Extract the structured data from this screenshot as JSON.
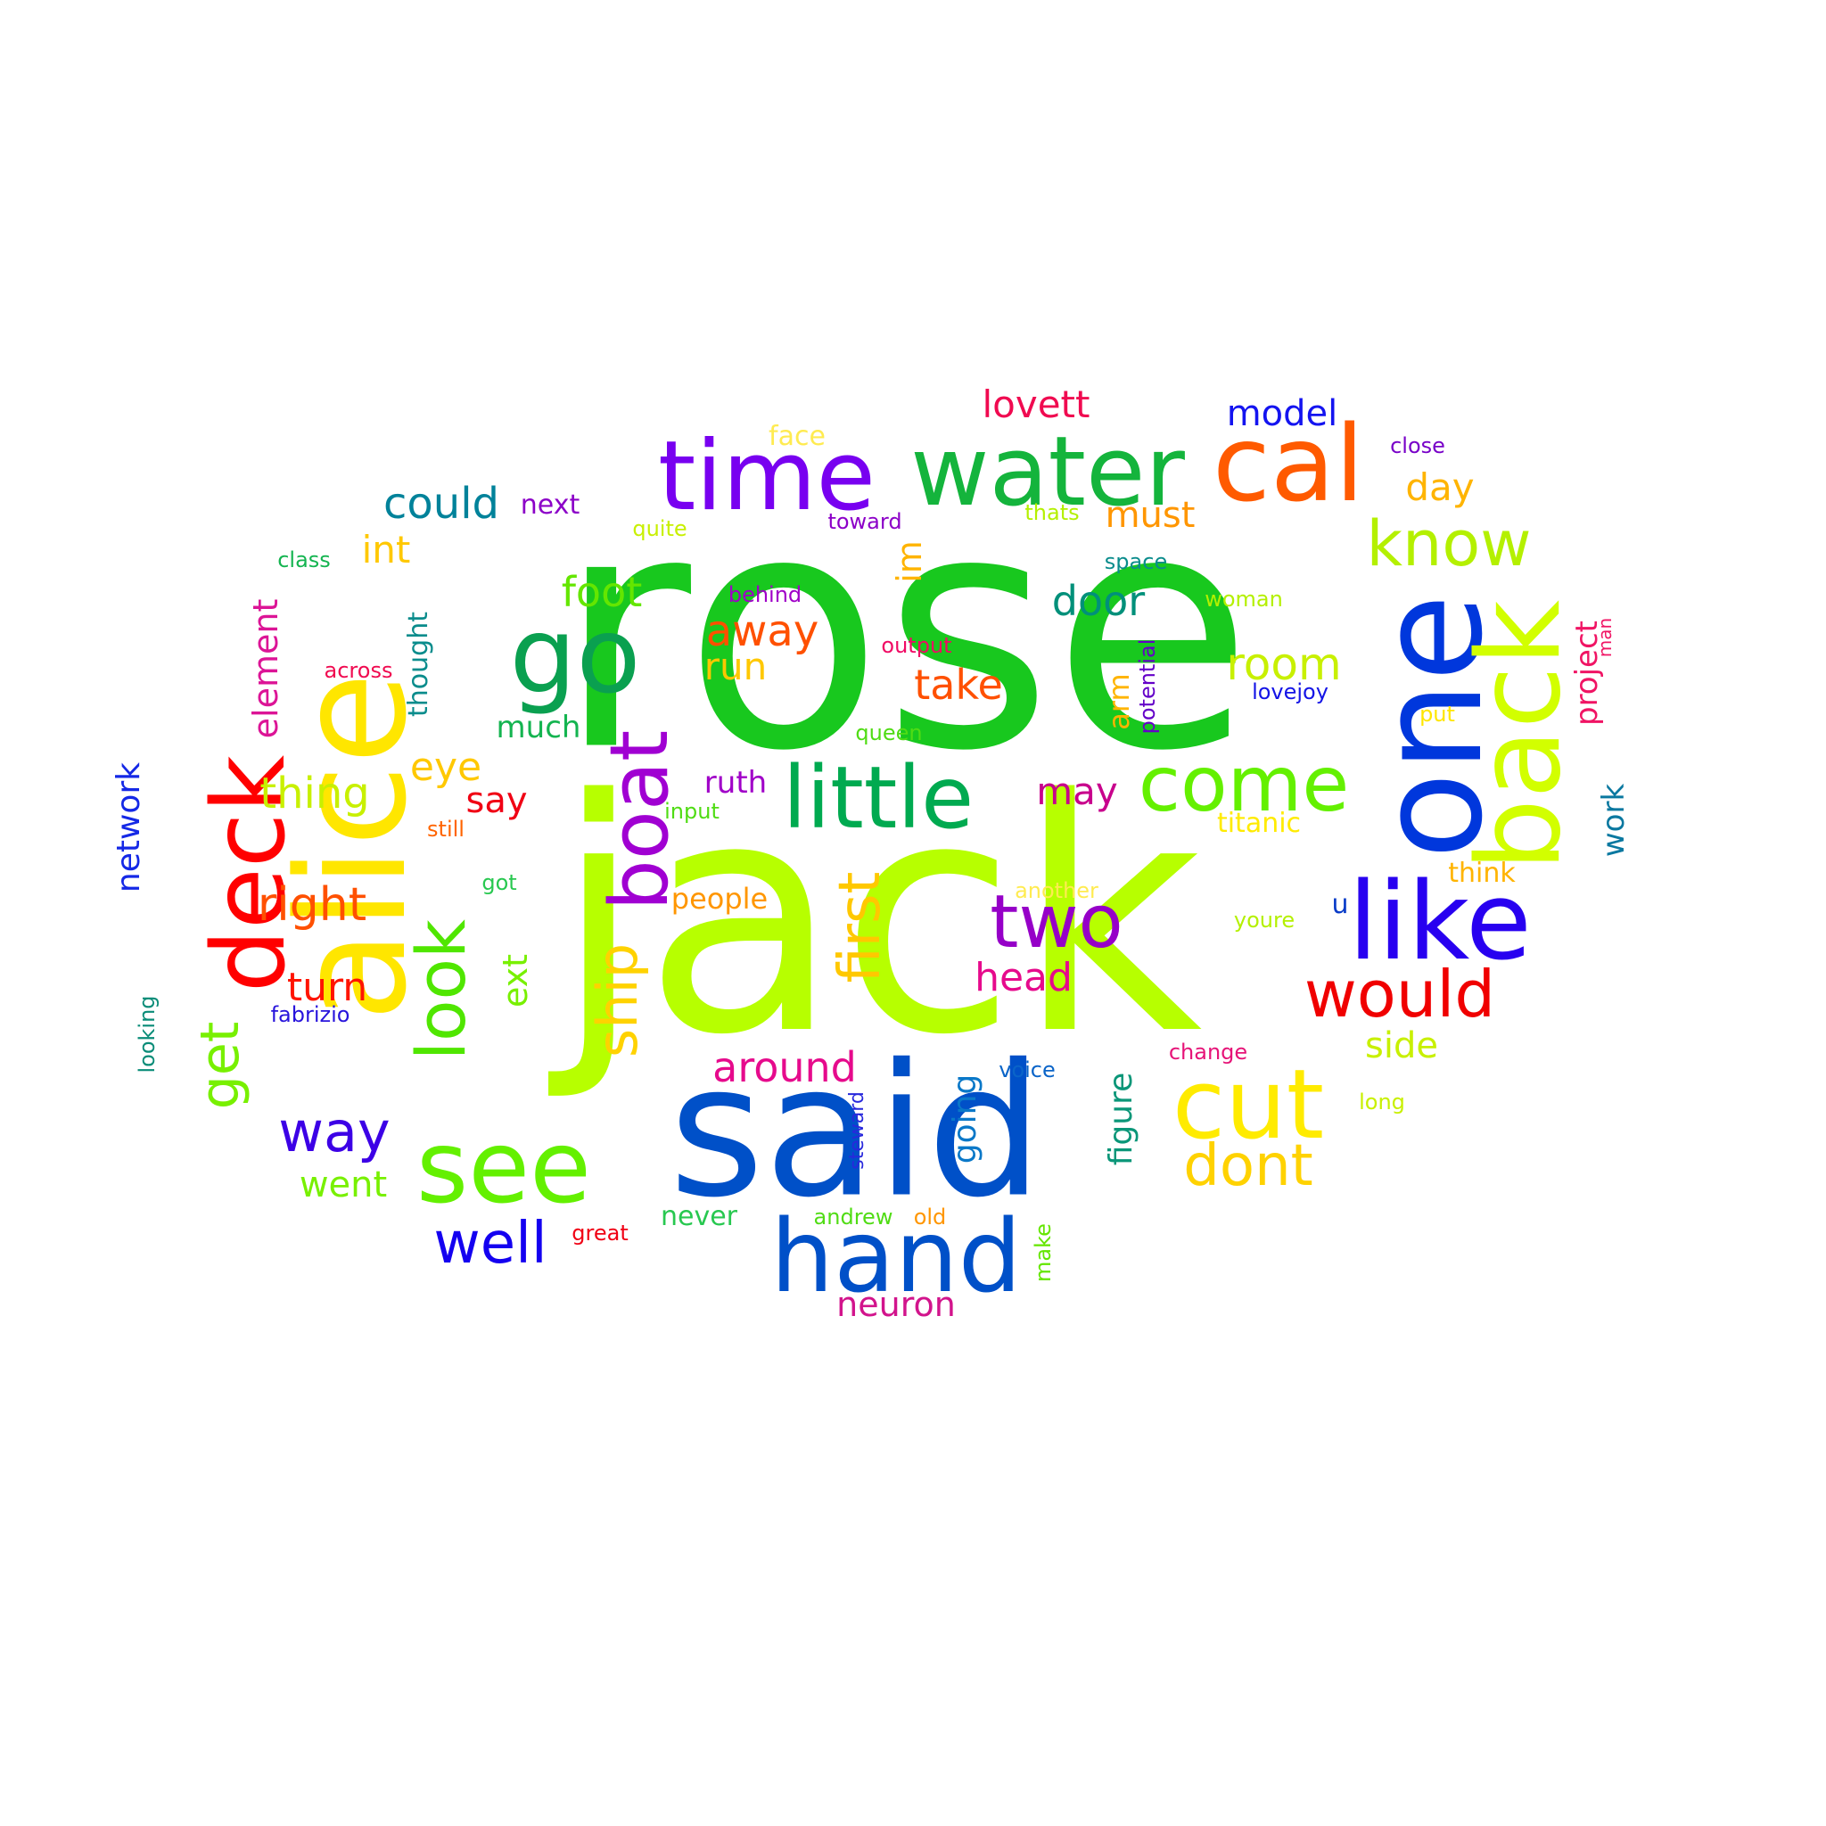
{
  "words": [
    {
      "text": "rose",
      "color": "#18c81e",
      "orientation": "horizontal"
    },
    {
      "text": "jack",
      "color": "#b7ff00",
      "orientation": "horizontal"
    },
    {
      "text": "said",
      "color": "#0050c8",
      "orientation": "horizontal"
    },
    {
      "text": "alice",
      "color": "#ffe600",
      "orientation": "vertical"
    },
    {
      "text": "one",
      "color": "#0037dc",
      "orientation": "vertical"
    },
    {
      "text": "back",
      "color": "#d2ff00",
      "orientation": "vertical"
    },
    {
      "text": "time",
      "color": "#7800f0",
      "orientation": "horizontal"
    },
    {
      "text": "water",
      "color": "#14b43c",
      "orientation": "horizontal"
    },
    {
      "text": "cal",
      "color": "#ff5a00",
      "orientation": "horizontal"
    },
    {
      "text": "go",
      "color": "#0aa050",
      "orientation": "horizontal"
    },
    {
      "text": "deck",
      "color": "#ff0000",
      "orientation": "vertical"
    },
    {
      "text": "like",
      "color": "#2800f0",
      "orientation": "horizontal"
    },
    {
      "text": "hand",
      "color": "#0050c8",
      "orientation": "horizontal"
    },
    {
      "text": "see",
      "color": "#64f000",
      "orientation": "horizontal"
    },
    {
      "text": "cut",
      "color": "#ffeb00",
      "orientation": "horizontal"
    },
    {
      "text": "boat",
      "color": "#a000d2",
      "orientation": "vertical"
    },
    {
      "text": "little",
      "color": "#00aa50",
      "orientation": "horizontal"
    },
    {
      "text": "come",
      "color": "#64f000",
      "orientation": "horizontal"
    },
    {
      "text": "know",
      "color": "#b4f000",
      "orientation": "horizontal"
    },
    {
      "text": "two",
      "color": "#9600c8",
      "orientation": "horizontal"
    },
    {
      "text": "look",
      "color": "#50e600",
      "orientation": "vertical"
    },
    {
      "text": "ship",
      "color": "#ffd200",
      "orientation": "vertical"
    },
    {
      "text": "would",
      "color": "#f00000",
      "orientation": "horizontal"
    },
    {
      "text": "first",
      "color": "#ffc800",
      "orientation": "vertical"
    },
    {
      "text": "well",
      "color": "#1400f0",
      "orientation": "horizontal"
    },
    {
      "text": "way",
      "color": "#3c00e6",
      "orientation": "horizontal"
    },
    {
      "text": "dont",
      "color": "#ffd200",
      "orientation": "horizontal"
    },
    {
      "text": "get",
      "color": "#78f000",
      "orientation": "vertical"
    },
    {
      "text": "right",
      "color": "#ff5000",
      "orientation": "horizontal"
    },
    {
      "text": "room",
      "color": "#c8f000",
      "orientation": "horizontal"
    },
    {
      "text": "door",
      "color": "#00907a",
      "orientation": "horizontal"
    },
    {
      "text": "away",
      "color": "#ff5000",
      "orientation": "horizontal"
    },
    {
      "text": "take",
      "color": "#ff5000",
      "orientation": "horizontal"
    },
    {
      "text": "could",
      "color": "#00829a",
      "orientation": "horizontal"
    },
    {
      "text": "foot",
      "color": "#64e600",
      "orientation": "horizontal"
    },
    {
      "text": "head",
      "color": "#e60a8c",
      "orientation": "horizontal"
    },
    {
      "text": "around",
      "color": "#e60a8c",
      "orientation": "horizontal"
    },
    {
      "text": "thing",
      "color": "#c8f000",
      "orientation": "horizontal"
    },
    {
      "text": "eye",
      "color": "#ffc800",
      "orientation": "horizontal"
    },
    {
      "text": "turn",
      "color": "#ff1400",
      "orientation": "horizontal"
    },
    {
      "text": "run",
      "color": "#ffc800",
      "orientation": "horizontal"
    },
    {
      "text": "int",
      "color": "#ffc800",
      "orientation": "horizontal"
    },
    {
      "text": "model",
      "color": "#1414f0",
      "orientation": "horizontal"
    },
    {
      "text": "lovett",
      "color": "#f00a50",
      "orientation": "horizontal"
    },
    {
      "text": "may",
      "color": "#c8008c",
      "orientation": "horizontal"
    },
    {
      "text": "must",
      "color": "#ff9600",
      "orientation": "horizontal"
    },
    {
      "text": "day",
      "color": "#ffb400",
      "orientation": "horizontal"
    },
    {
      "text": "side",
      "color": "#c8f000",
      "orientation": "horizontal"
    },
    {
      "text": "went",
      "color": "#78f000",
      "orientation": "horizontal"
    },
    {
      "text": "neuron",
      "color": "#d2148c",
      "orientation": "horizontal"
    },
    {
      "text": "ruth",
      "color": "#a000c8",
      "orientation": "horizontal"
    },
    {
      "text": "say",
      "color": "#f00014",
      "orientation": "horizontal"
    },
    {
      "text": "much",
      "color": "#14b450",
      "orientation": "horizontal"
    },
    {
      "text": "element",
      "color": "#dc1496",
      "orientation": "vertical"
    },
    {
      "text": "network",
      "color": "#1428e6",
      "orientation": "vertical"
    },
    {
      "text": "ext",
      "color": "#78f000",
      "orientation": "vertical"
    },
    {
      "text": "project",
      "color": "#f01464",
      "orientation": "vertical"
    },
    {
      "text": "work",
      "color": "#0a78a0",
      "orientation": "vertical"
    },
    {
      "text": "arm",
      "color": "#ffb400",
      "orientation": "vertical"
    },
    {
      "text": "im",
      "color": "#ffb400",
      "orientation": "vertical"
    },
    {
      "text": "going",
      "color": "#0a78c8",
      "orientation": "vertical"
    },
    {
      "text": "figure",
      "color": "#0a9678",
      "orientation": "vertical"
    },
    {
      "text": "thought",
      "color": "#0a8c8c",
      "orientation": "vertical"
    },
    {
      "text": "people",
      "color": "#ff9600",
      "orientation": "horizontal"
    },
    {
      "text": "never",
      "color": "#28c850",
      "orientation": "horizontal"
    },
    {
      "text": "next",
      "color": "#8c00c8",
      "orientation": "horizontal"
    },
    {
      "text": "face",
      "color": "#ffeb50",
      "orientation": "horizontal"
    },
    {
      "text": "think",
      "color": "#ffb400",
      "orientation": "horizontal"
    },
    {
      "text": "titanic",
      "color": "#ffeb00",
      "orientation": "horizontal"
    },
    {
      "text": "u",
      "color": "#0a3cc8",
      "orientation": "horizontal"
    },
    {
      "text": "fabrizio",
      "color": "#2814dc",
      "orientation": "horizontal"
    },
    {
      "text": "close",
      "color": "#7800c8",
      "orientation": "horizontal"
    },
    {
      "text": "toward",
      "color": "#8c00c8",
      "orientation": "horizontal"
    },
    {
      "text": "behind",
      "color": "#a000c8",
      "orientation": "horizontal"
    },
    {
      "text": "quite",
      "color": "#c8f000",
      "orientation": "horizontal"
    },
    {
      "text": "class",
      "color": "#14b450",
      "orientation": "horizontal"
    },
    {
      "text": "thats",
      "color": "#b4f000",
      "orientation": "horizontal"
    },
    {
      "text": "space",
      "color": "#0a8c8c",
      "orientation": "horizontal"
    },
    {
      "text": "woman",
      "color": "#b4f000",
      "orientation": "horizontal"
    },
    {
      "text": "output",
      "color": "#f00a64",
      "orientation": "horizontal"
    },
    {
      "text": "across",
      "color": "#f00a50",
      "orientation": "horizontal"
    },
    {
      "text": "lovejoy",
      "color": "#1414e6",
      "orientation": "horizontal"
    },
    {
      "text": "queen",
      "color": "#50dc14",
      "orientation": "horizontal"
    },
    {
      "text": "put",
      "color": "#ffe600",
      "orientation": "horizontal"
    },
    {
      "text": "input",
      "color": "#50dc14",
      "orientation": "horizontal"
    },
    {
      "text": "still",
      "color": "#ff6400",
      "orientation": "horizontal"
    },
    {
      "text": "got",
      "color": "#28c850",
      "orientation": "horizontal"
    },
    {
      "text": "another",
      "color": "#ffeb50",
      "orientation": "horizontal"
    },
    {
      "text": "youre",
      "color": "#b4f000",
      "orientation": "horizontal"
    },
    {
      "text": "change",
      "color": "#e61478",
      "orientation": "horizontal"
    },
    {
      "text": "voice",
      "color": "#0a64c8",
      "orientation": "horizontal"
    },
    {
      "text": "long",
      "color": "#c8f000",
      "orientation": "horizontal"
    },
    {
      "text": "andrew",
      "color": "#50dc14",
      "orientation": "horizontal"
    },
    {
      "text": "old",
      "color": "#ff9600",
      "orientation": "horizontal"
    },
    {
      "text": "great",
      "color": "#f00014",
      "orientation": "horizontal"
    },
    {
      "text": "looking",
      "color": "#0a8c78",
      "orientation": "vertical"
    },
    {
      "text": "steward",
      "color": "#2828dc",
      "orientation": "vertical"
    },
    {
      "text": "make",
      "color": "#64e600",
      "orientation": "vertical"
    },
    {
      "text": "potential",
      "color": "#6400c8",
      "orientation": "vertical"
    },
    {
      "text": "man",
      "color": "#f01464",
      "orientation": "vertical"
    }
  ]
}
